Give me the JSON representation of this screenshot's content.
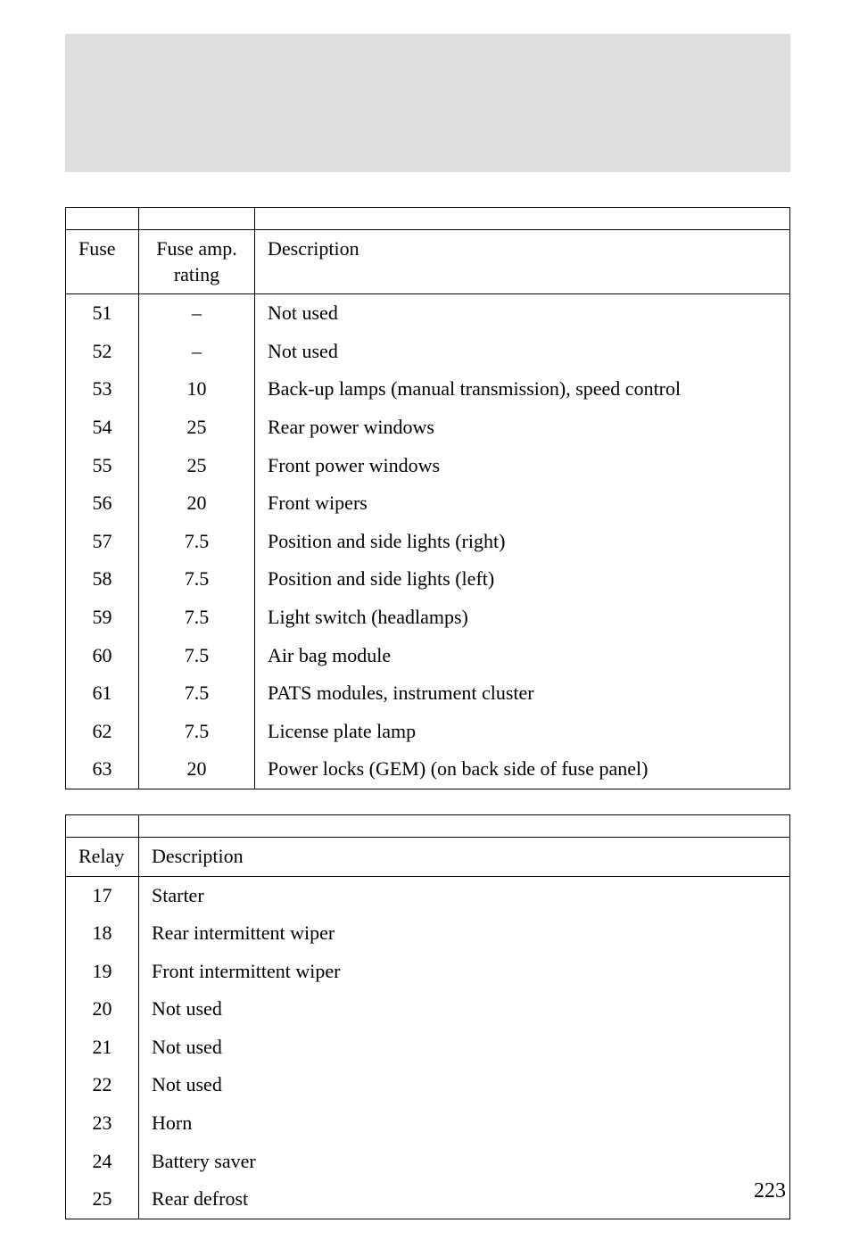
{
  "fuseTable": {
    "headers": {
      "fuse": "Fuse",
      "rating": "Fuse amp. rating",
      "desc": "Description"
    },
    "rows": [
      {
        "fuse": "51",
        "rating": "–",
        "desc": "Not used"
      },
      {
        "fuse": "52",
        "rating": "–",
        "desc": "Not used"
      },
      {
        "fuse": "53",
        "rating": "10",
        "desc": "Back-up lamps (manual transmission), speed control"
      },
      {
        "fuse": "54",
        "rating": "25",
        "desc": "Rear power windows"
      },
      {
        "fuse": "55",
        "rating": "25",
        "desc": "Front power windows"
      },
      {
        "fuse": "56",
        "rating": "20",
        "desc": "Front wipers"
      },
      {
        "fuse": "57",
        "rating": "7.5",
        "desc": "Position and side lights (right)"
      },
      {
        "fuse": "58",
        "rating": "7.5",
        "desc": "Position and side lights (left)"
      },
      {
        "fuse": "59",
        "rating": "7.5",
        "desc": "Light switch (headlamps)"
      },
      {
        "fuse": "60",
        "rating": "7.5",
        "desc": "Air bag module"
      },
      {
        "fuse": "61",
        "rating": "7.5",
        "desc": "PATS modules, instrument cluster"
      },
      {
        "fuse": "62",
        "rating": "7.5",
        "desc": "License plate lamp"
      },
      {
        "fuse": "63",
        "rating": "20",
        "desc": "Power locks (GEM) (on back side of fuse panel)"
      }
    ]
  },
  "relayTable": {
    "headers": {
      "relay": "Relay",
      "desc": "Description"
    },
    "rows": [
      {
        "relay": "17",
        "desc": "Starter"
      },
      {
        "relay": "18",
        "desc": "Rear intermittent wiper"
      },
      {
        "relay": "19",
        "desc": "Front intermittent wiper"
      },
      {
        "relay": "20",
        "desc": "Not used"
      },
      {
        "relay": "21",
        "desc": "Not used"
      },
      {
        "relay": "22",
        "desc": "Not used"
      },
      {
        "relay": "23",
        "desc": "Horn"
      },
      {
        "relay": "24",
        "desc": "Battery saver"
      },
      {
        "relay": "25",
        "desc": "Rear defrost"
      }
    ]
  },
  "pageNumber": "223",
  "colors": {
    "headerBg": "#dedede",
    "pageBg": "#ffffff",
    "border": "#000000",
    "text": "#000000"
  }
}
